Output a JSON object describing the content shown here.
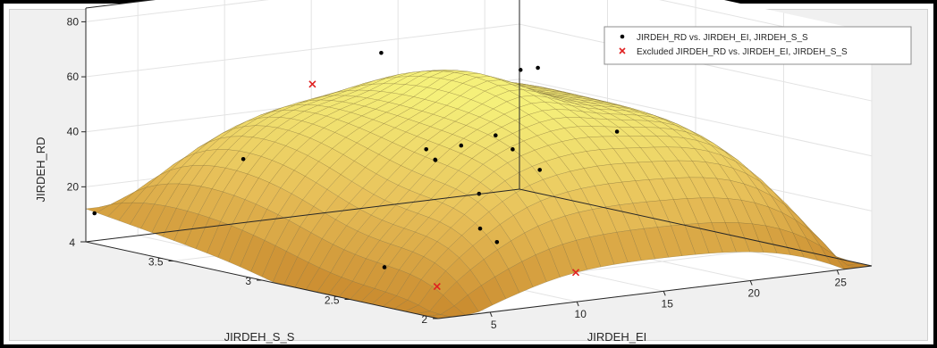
{
  "colors": {
    "figure_bg": "#f0f0f0",
    "axes_bg": "#ffffff",
    "grid": "#e3e3e3",
    "surface_top": "#f5f07a",
    "surface_mid": "#e8c15a",
    "surface_dark": "#c98a2e",
    "mesh": "#7a6a3a",
    "included_marker": "#000000",
    "excluded_marker": "#e02020",
    "outline": "#262626"
  },
  "chart_data": {
    "type": "surface",
    "title": "",
    "xlabel": "JIRDEH_EI",
    "ylabel": "JIRDEH_S_S",
    "zlabel": "JIRDEH_RD",
    "xlim": [
      2,
      27
    ],
    "ylim": [
      2,
      4
    ],
    "zlim": [
      0,
      85
    ],
    "x_ticks": [
      "5",
      "10",
      "15",
      "20",
      "25"
    ],
    "y_ticks": [
      "2",
      "2.5",
      "3",
      "3.5",
      "4"
    ],
    "z_ticks": [
      "20",
      "40",
      "60",
      "80"
    ],
    "grid": true,
    "legend_position": "top-right",
    "legend": [
      {
        "label": "JIRDEH_RD vs. JIRDEH_EI, JIRDEH_S_S",
        "marker": "dot"
      },
      {
        "label": "Excluded JIRDEH_RD vs. JIRDEH_EI, JIRDEH_S_S",
        "marker": "x"
      }
    ],
    "included_points": [
      {
        "ei": 2.5,
        "ss": 4.0,
        "rd": 10
      },
      {
        "ei": 6.0,
        "ss": 3.5,
        "rd": 34
      },
      {
        "ei": 5.0,
        "ss": 2.6,
        "rd": 8
      },
      {
        "ei": 9.5,
        "ss": 2.5,
        "rd": 20
      },
      {
        "ei": 12.0,
        "ss": 3.0,
        "rd": 36
      },
      {
        "ei": 13.0,
        "ss": 3.1,
        "rd": 34
      },
      {
        "ei": 13.5,
        "ss": 3.2,
        "rd": 36
      },
      {
        "ei": 14.5,
        "ss": 3.1,
        "rd": 38
      },
      {
        "ei": 13.5,
        "ss": 2.9,
        "rd": 24
      },
      {
        "ei": 12.5,
        "ss": 2.7,
        "rd": 10
      },
      {
        "ei": 17.0,
        "ss": 3.8,
        "rd": 60
      },
      {
        "ei": 17.5,
        "ss": 3.2,
        "rd": 38
      },
      {
        "ei": 17.0,
        "ss": 2.9,
        "rd": 30
      },
      {
        "ei": 19.5,
        "ss": 3.3,
        "rd": 30
      },
      {
        "ei": 23.0,
        "ss": 3.6,
        "rd": 52
      },
      {
        "ei": 24.0,
        "ss": 3.6,
        "rd": 52
      },
      {
        "ei": 24.5,
        "ss": 3.2,
        "rd": 34
      }
    ],
    "excluded_points": [
      {
        "ei": 6.0,
        "ss": 2.4,
        "rd": 3
      },
      {
        "ei": 11.0,
        "ss": 3.6,
        "rd": 56
      },
      {
        "ei": 14.0,
        "ss": 2.4,
        "rd": 2
      }
    ],
    "surface_peak": {
      "ei": 14,
      "ss": 3,
      "rd": 58
    }
  }
}
